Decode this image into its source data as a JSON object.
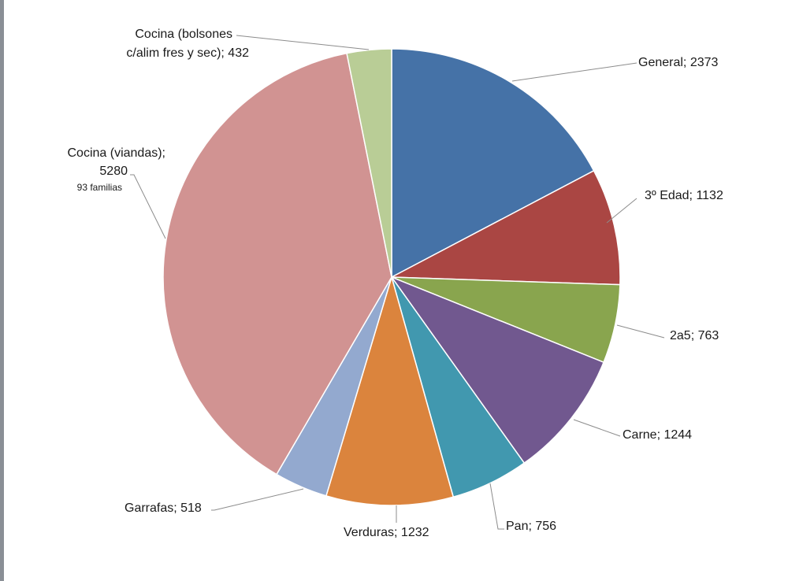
{
  "chart_data": {
    "type": "pie",
    "slices": [
      {
        "label": "General; 2373",
        "value": 2373,
        "color": "#4572a7"
      },
      {
        "label": "3º Edad; 1132",
        "value": 1132,
        "color": "#aa4643"
      },
      {
        "label": "2a5; 763",
        "value": 763,
        "color": "#89a54e"
      },
      {
        "label": "Carne; 1244",
        "value": 1244,
        "color": "#71588f"
      },
      {
        "label": "Pan; 756",
        "value": 756,
        "color": "#4198af"
      },
      {
        "label": "Verduras; 1232",
        "value": 1232,
        "color": "#db843d"
      },
      {
        "label": "Garrafas; 518",
        "value": 518,
        "color": "#93a9cf"
      },
      {
        "label_lines": [
          "Cocina (viandas);",
          "5280"
        ],
        "note": "93 familias",
        "value": 5280,
        "color": "#d19392"
      },
      {
        "label_lines": [
          "Cocina (bolsones",
          "c/alim fres y sec); 432"
        ],
        "value": 432,
        "color": "#b9cd96"
      }
    ]
  }
}
